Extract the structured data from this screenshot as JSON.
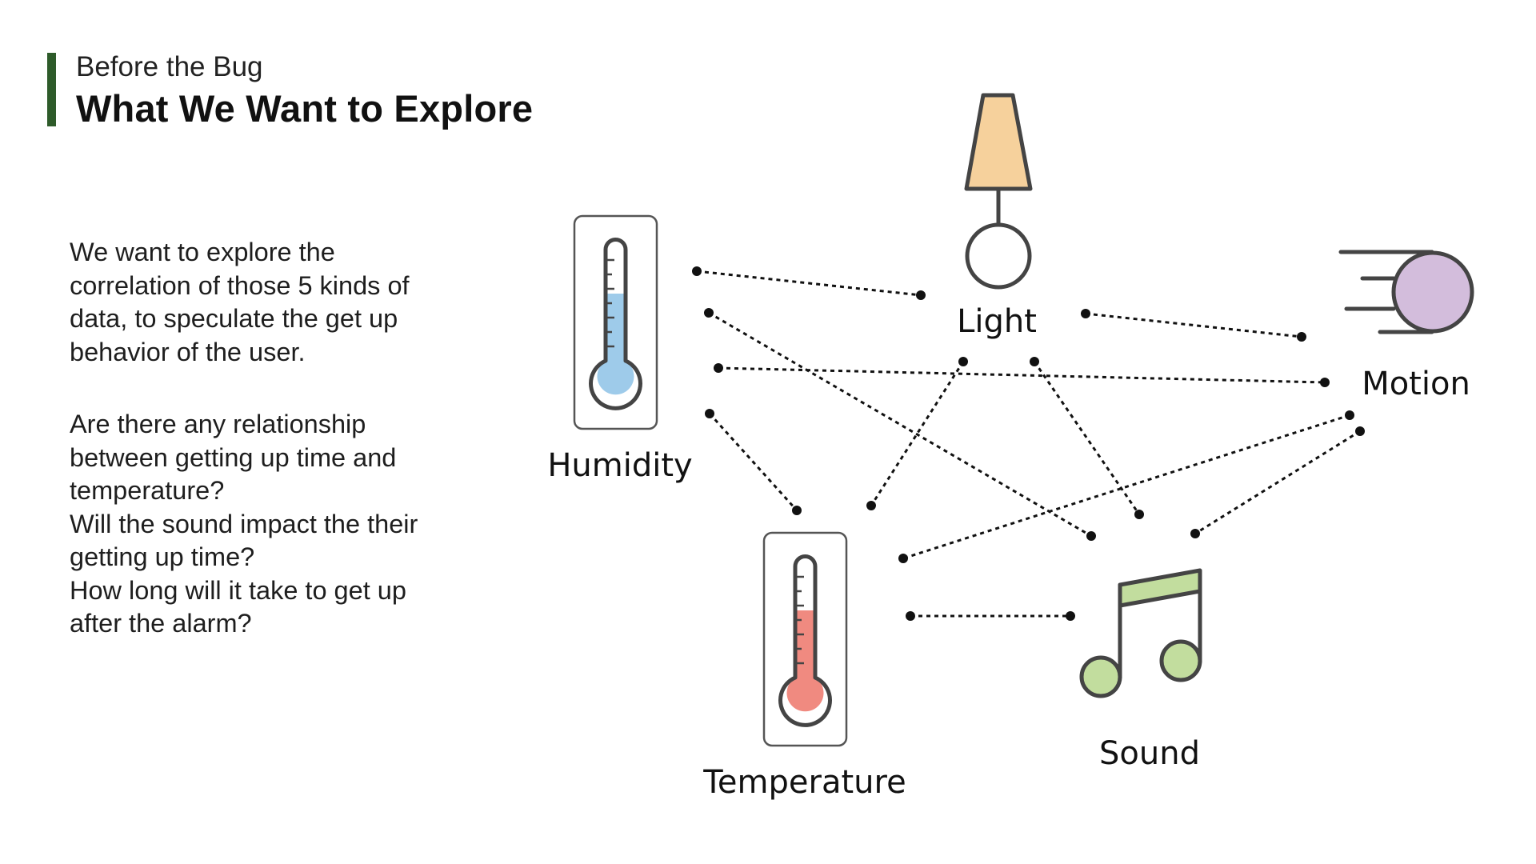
{
  "header": {
    "subtitle": "Before the Bug",
    "title": "What We Want to Explore"
  },
  "body": {
    "paragraph1": [
      "We want to explore the",
      "correlation of those 5 kinds of",
      "data, to speculate the get up",
      "behavior of the user."
    ],
    "paragraph2": [
      "Are there any relationship",
      "between getting up time and",
      "temperature?",
      "Will the sound impact the their",
      "getting up time?",
      "How long will it take to get up",
      "after the alarm?"
    ]
  },
  "diagram": {
    "nodes": {
      "humidity": "Humidity",
      "light": "Light",
      "motion": "Motion",
      "temperature": "Temperature",
      "sound": "Sound"
    },
    "connections": [
      [
        "humidity",
        "light"
      ],
      [
        "humidity",
        "sound"
      ],
      [
        "humidity",
        "motion"
      ],
      [
        "humidity",
        "temperature"
      ],
      [
        "light",
        "motion"
      ],
      [
        "light",
        "temperature"
      ],
      [
        "light",
        "sound"
      ],
      [
        "motion",
        "temperature"
      ],
      [
        "motion",
        "sound"
      ],
      [
        "temperature",
        "sound"
      ]
    ],
    "icons": {
      "humidity": "thermometer-blue-icon",
      "light": "lamp-icon",
      "motion": "moving-ball-icon",
      "temperature": "thermometer-red-icon",
      "sound": "music-note-icon"
    },
    "colors": {
      "accent": "#2e5b2a",
      "humidity_fill": "#9ecbea",
      "temperature_fill": "#f08a80",
      "lamp_shade": "#f6d19c",
      "motion_ball": "#d3bddc",
      "sound_fill": "#c2dd9e",
      "outline": "#444444"
    }
  }
}
